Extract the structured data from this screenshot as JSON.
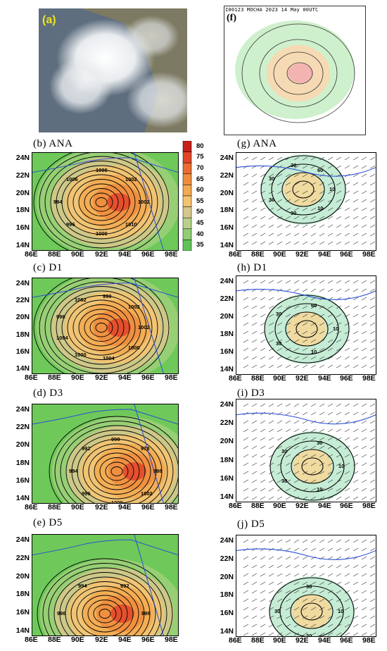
{
  "panels": {
    "a": {
      "label": "(a)"
    },
    "f": {
      "label": "(f)",
      "header": "I00123        MOCHA 2023 14 May 00UTC"
    },
    "b": {
      "title": "(b) ANA",
      "contours": [
        "1002",
        "1010",
        "1000",
        "996",
        "994",
        "1006",
        "1000",
        "1002"
      ]
    },
    "c": {
      "title": "(c) D1",
      "contours": [
        "1002",
        "1000",
        "1004",
        "1000",
        "1004",
        "996",
        "1002",
        "990",
        "1002"
      ]
    },
    "d": {
      "title": "(d) D3",
      "contours": [
        "998",
        "1002",
        "1000",
        "996",
        "994",
        "992",
        "990",
        "978"
      ]
    },
    "e": {
      "title": "(e) D5",
      "contours": [
        "998",
        "996",
        "1002",
        "996",
        "994",
        "992"
      ]
    },
    "g": {
      "title": "(g) ANA",
      "contours": [
        "10",
        "10",
        "30",
        "30",
        "30",
        "30",
        "60"
      ]
    },
    "h": {
      "title": "(h) D1",
      "contours": [
        "10",
        "10",
        "30",
        "30",
        "60"
      ]
    },
    "i": {
      "title": "(i) D3",
      "contours": [
        "10",
        "10",
        "30",
        "30",
        "30"
      ]
    },
    "j": {
      "title": "(j) D5",
      "contours": [
        "10",
        "30",
        "30",
        "30"
      ]
    }
  },
  "axes": {
    "lat_ticks": [
      "24N",
      "22N",
      "20N",
      "18N",
      "16N",
      "14N"
    ],
    "lon_ticks": [
      "86E",
      "88E",
      "90E",
      "92E",
      "94E",
      "96E",
      "98E"
    ]
  },
  "colorbar": {
    "ticks": [
      "80",
      "75",
      "70",
      "65",
      "60",
      "55",
      "50",
      "45",
      "40",
      "35"
    ],
    "colors": [
      "#c81f1a",
      "#e0452a",
      "#eb6a33",
      "#ef8b3e",
      "#f2a950",
      "#f4c371",
      "#d6c78c",
      "#b8d28a",
      "#8fce74",
      "#5fc456"
    ]
  }
}
